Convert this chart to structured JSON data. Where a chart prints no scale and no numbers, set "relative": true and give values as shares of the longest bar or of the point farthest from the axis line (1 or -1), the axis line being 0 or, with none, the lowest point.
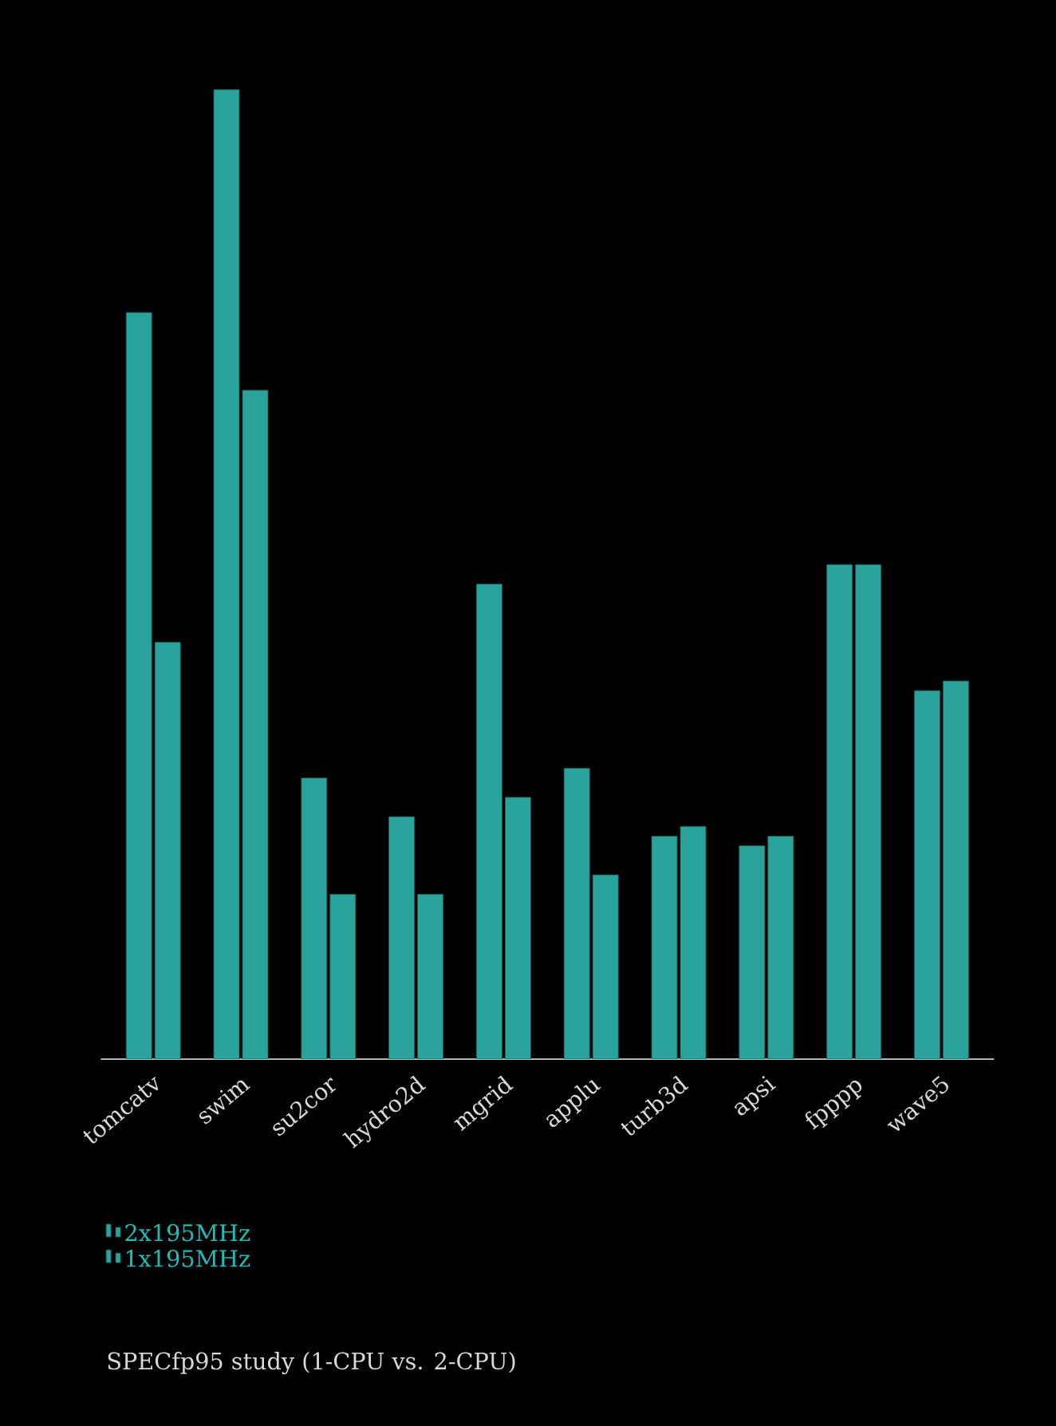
{
  "chart_data": {
    "type": "bar",
    "title": "SPECfp95 study (1-CPU vs. 2-CPU)",
    "relative": true,
    "legend": "bottom left",
    "categories": [
      "tomcatv",
      "swim",
      "su2cor",
      "hydro2d",
      "mgrid",
      "applu",
      "turb3d",
      "apsi",
      "fpppp",
      "wave5"
    ],
    "series": [
      {
        "name": "2x195MHz",
        "color": "#2aa39d",
        "values": [
          0.77,
          1,
          0.29,
          0.25,
          0.49,
          0.3,
          0.23,
          0.22,
          0.51,
          0.38
        ]
      },
      {
        "name": "1x195MHz",
        "color": "#2aa39d",
        "values": [
          0.43,
          0.69,
          0.17,
          0.17,
          0.27,
          0.19,
          0.24,
          0.23,
          0.51,
          0.39
        ]
      }
    ]
  }
}
